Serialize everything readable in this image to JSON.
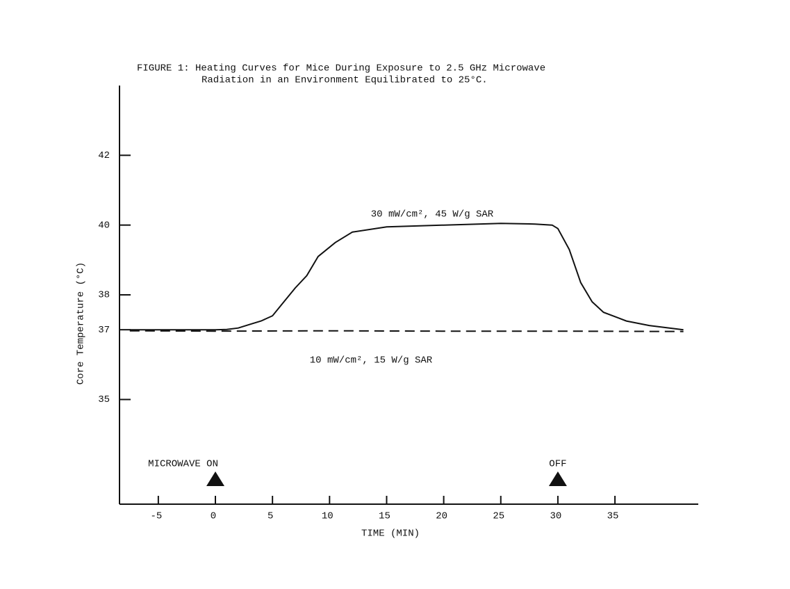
{
  "chart_data": {
    "type": "line",
    "title": "FIGURE 1:  Heating Curves for Mice During Exposure to 2.5 GHz Microwave",
    "subtitle": "Radiation in an Environment Equilibrated to 25°C.",
    "x_label": "TIME (MIN)",
    "y_label": "Core Temperature (°C)",
    "xlim": [
      -8.4,
      42.3
    ],
    "xticks": [
      -5,
      0,
      5,
      10,
      15,
      20,
      25,
      30,
      35
    ],
    "ylim": [
      32,
      44
    ],
    "yticks": [
      35,
      37,
      38,
      40,
      42
    ],
    "grid": false,
    "series": [
      {
        "name": "30 mW/cm², 45 W/g SAR",
        "color": "#111111",
        "dash": false,
        "x": [
          -7.5,
          -5,
          0,
          1,
          2,
          3,
          4,
          5,
          6,
          7,
          8,
          9,
          10.5,
          12,
          15,
          20,
          25,
          28,
          29.5,
          30,
          31,
          32,
          33,
          34,
          36,
          38,
          41
        ],
        "values": [
          37.0,
          37.0,
          37.0,
          37.01,
          37.05,
          37.15,
          37.25,
          37.4,
          37.8,
          38.2,
          38.55,
          39.1,
          39.5,
          39.8,
          39.95,
          40.0,
          40.05,
          40.03,
          40.0,
          39.9,
          39.3,
          38.35,
          37.8,
          37.5,
          37.25,
          37.12,
          37.0
        ]
      },
      {
        "name": "10 mW/cm², 15 W/g SAR",
        "color": "#111111",
        "dash": true,
        "x": [
          -7.5,
          0,
          10,
          20,
          30,
          41
        ],
        "values": [
          36.97,
          36.96,
          36.97,
          36.96,
          36.96,
          36.95
        ]
      }
    ],
    "annotations": [
      {
        "text": "MICROWAVE ON",
        "x": 0
      },
      {
        "text": "OFF",
        "x": 30
      }
    ]
  }
}
